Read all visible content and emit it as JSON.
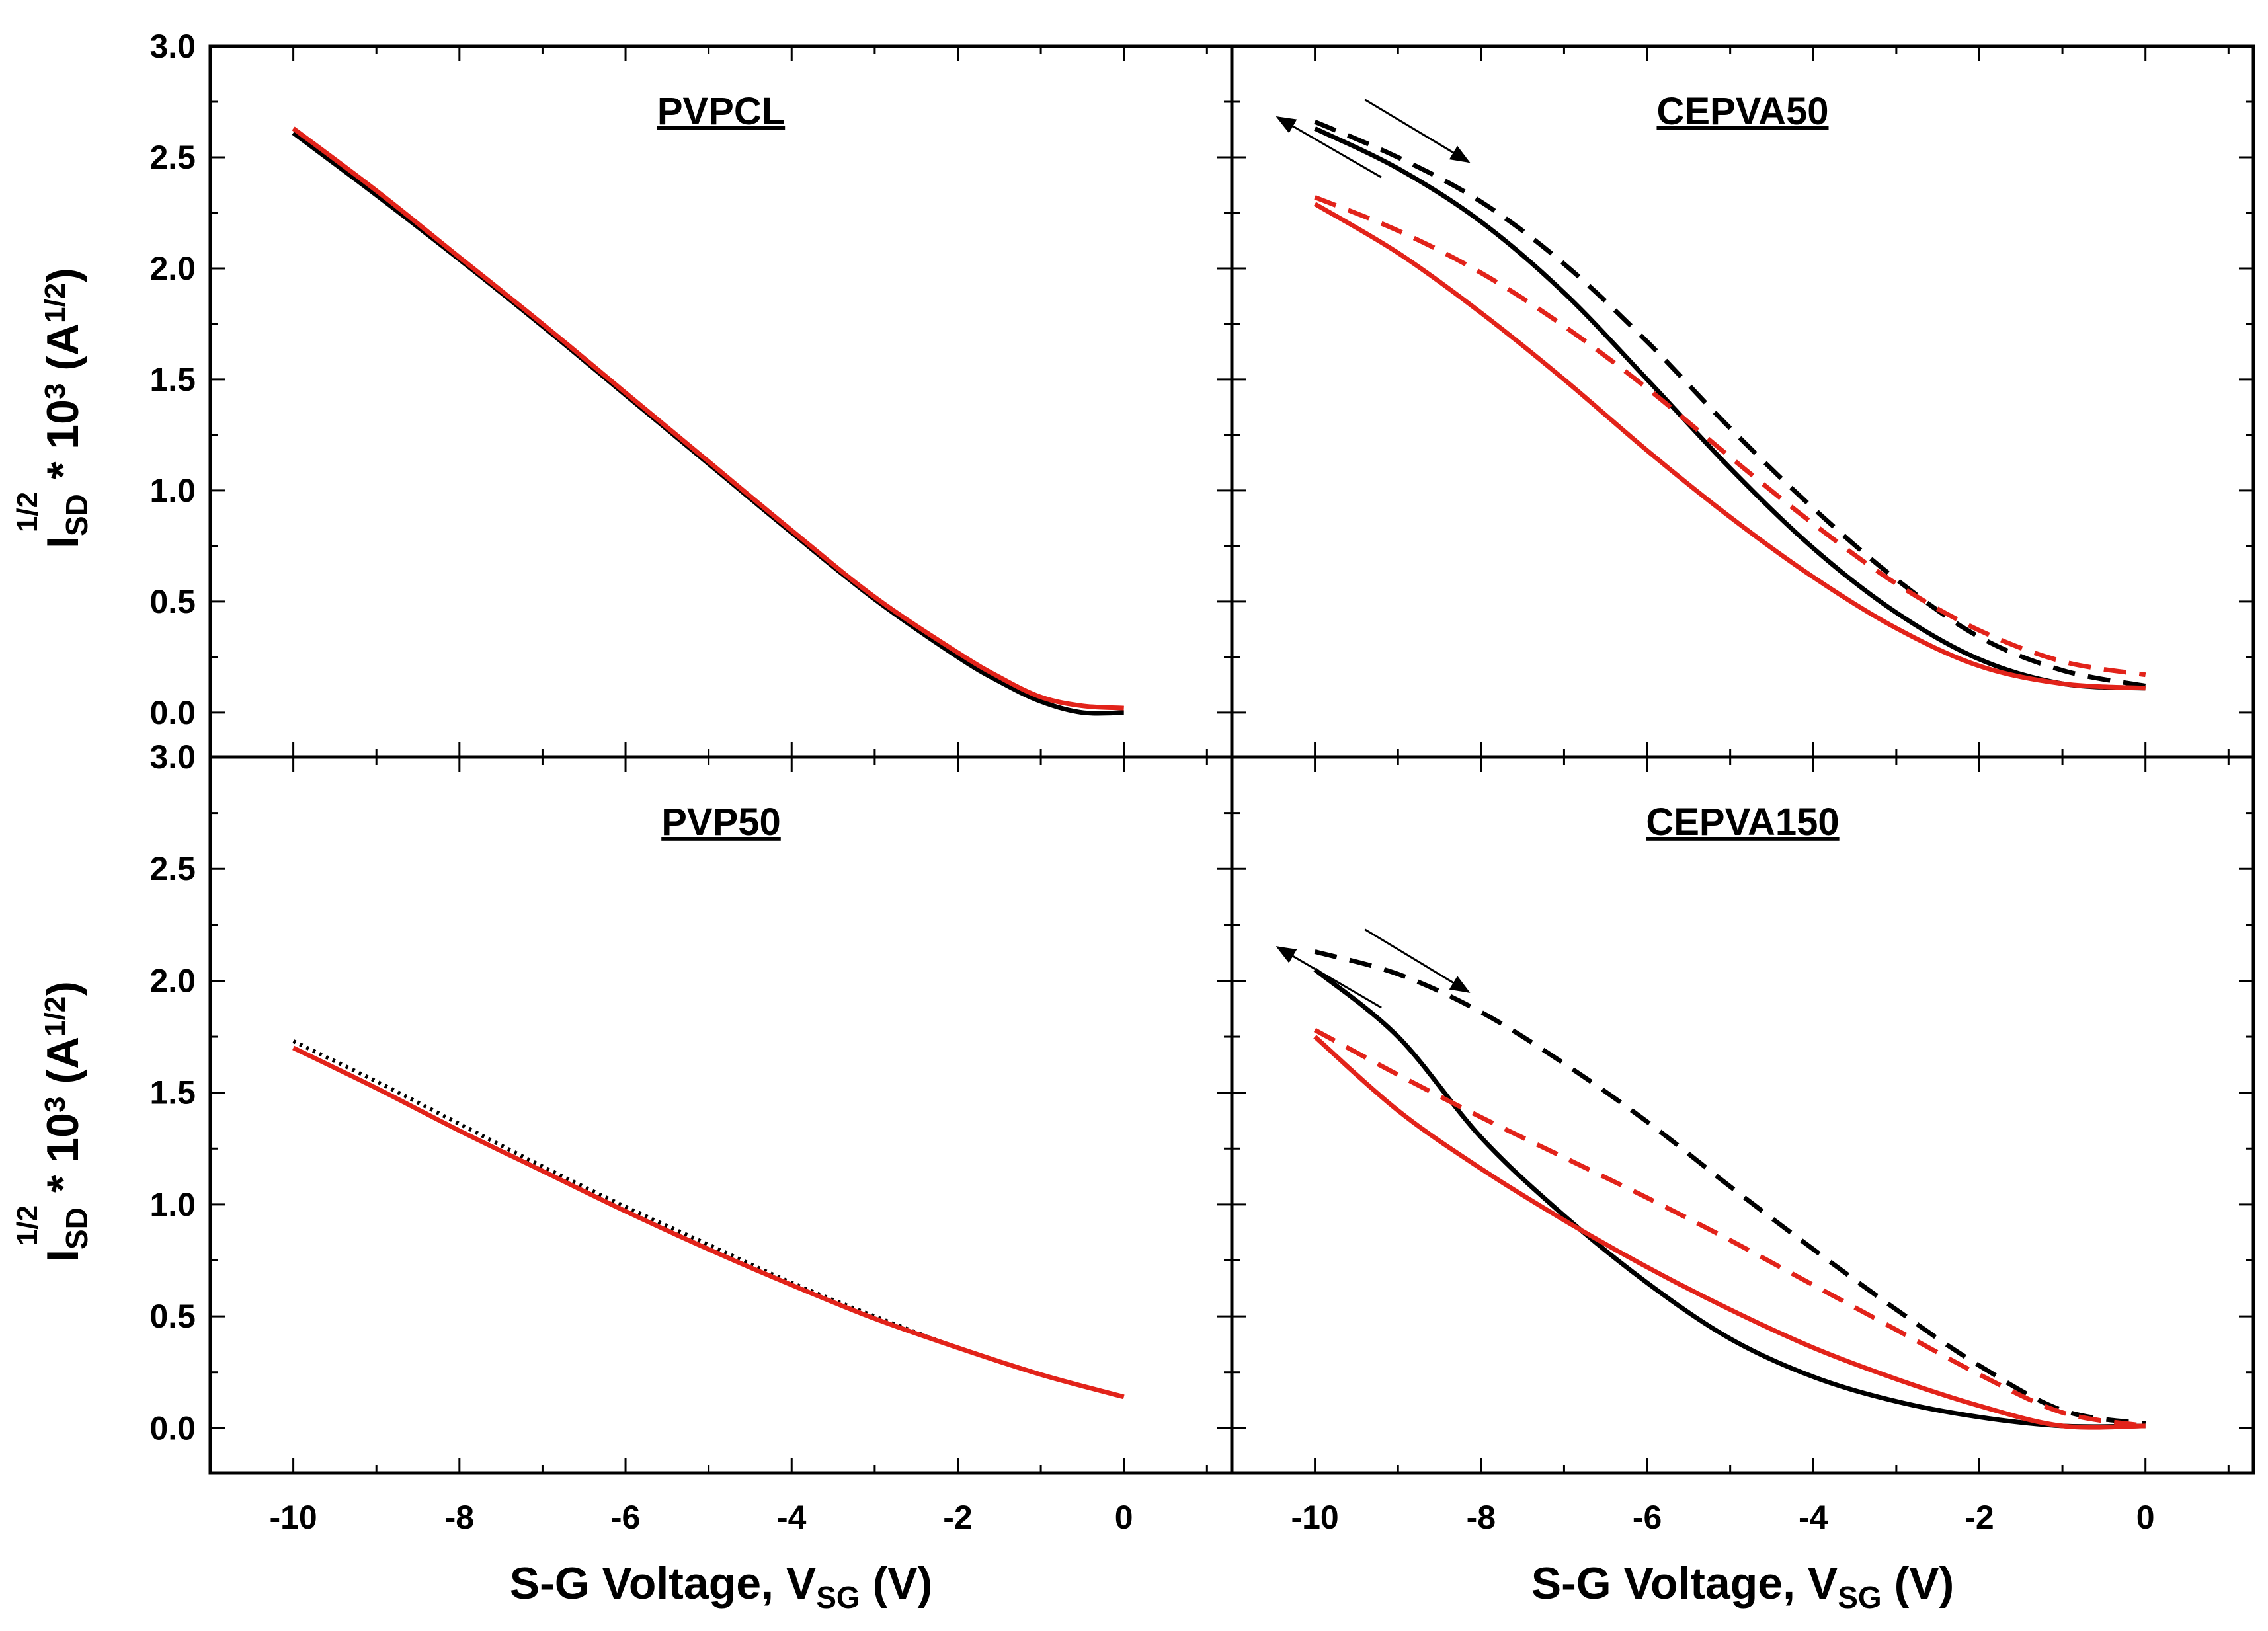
{
  "chart_data": {
    "type": "line",
    "layout": "2x2 grid, shared axes",
    "xlabel": {
      "main": "S-G Voltage, V",
      "sub": "SG",
      "tail": " (V)"
    },
    "ylabel": {
      "main": "I",
      "sub": "SD",
      "sup": "1/2",
      "mid": " * 10",
      "sup2": "3",
      "unit_open": " (A",
      "unit_sup": "1/2",
      "unit_close": ")"
    },
    "xlim": [
      -11,
      1.3
    ],
    "ylim": [
      -0.2,
      3.0
    ],
    "x_ticks": [
      -10,
      -8,
      -6,
      -4,
      -2,
      0
    ],
    "x_tick_labels": [
      "-10",
      "-8",
      "-6",
      "-4",
      "-2",
      "0"
    ],
    "y_ticks": [
      0.0,
      0.5,
      1.0,
      1.5,
      2.0,
      2.5,
      3.0
    ],
    "y_tick_labels": [
      "0.0",
      "0.5",
      "1.0",
      "1.5",
      "2.0",
      "2.5",
      "3.0"
    ],
    "colors": {
      "black": "#000000",
      "red": "#e2231a"
    },
    "panels": [
      {
        "id": "PVPCL",
        "title": "PVPCL",
        "series": [
          {
            "name": "black forward",
            "color": "black",
            "dash": false,
            "x": [
              -10,
              -9,
              -8,
              -7,
              -6,
              -5,
              -4,
              -3,
              -2,
              -1.5,
              -1,
              -0.5,
              0
            ],
            "y": [
              2.61,
              2.33,
              2.04,
              1.74,
              1.43,
              1.12,
              0.81,
              0.51,
              0.25,
              0.14,
              0.05,
              0.0,
              0.0
            ]
          },
          {
            "name": "red forward",
            "color": "red",
            "dash": false,
            "x": [
              -10,
              -9,
              -8,
              -7,
              -6,
              -5,
              -4,
              -3,
              -2,
              -1.5,
              -1,
              -0.5,
              0
            ],
            "y": [
              2.63,
              2.35,
              2.05,
              1.75,
              1.44,
              1.13,
              0.82,
              0.52,
              0.27,
              0.16,
              0.07,
              0.03,
              0.02
            ]
          }
        ]
      },
      {
        "id": "CEPVA50",
        "title": "CEPVA50",
        "arrows": true,
        "series": [
          {
            "name": "black solid",
            "color": "black",
            "dash": false,
            "x": [
              -10,
              -9,
              -8,
              -7,
              -6,
              -5,
              -4,
              -3,
              -2,
              -1,
              0
            ],
            "y": [
              2.63,
              2.45,
              2.21,
              1.89,
              1.5,
              1.1,
              0.74,
              0.45,
              0.24,
              0.13,
              0.11
            ]
          },
          {
            "name": "black dashed",
            "color": "black",
            "dash": true,
            "x": [
              -10,
              -9,
              -8,
              -7,
              -6,
              -5,
              -4,
              -3,
              -2,
              -1,
              0
            ],
            "y": [
              2.66,
              2.5,
              2.3,
              2.02,
              1.67,
              1.28,
              0.92,
              0.6,
              0.34,
              0.19,
              0.12
            ]
          },
          {
            "name": "red solid",
            "color": "red",
            "dash": false,
            "x": [
              -10,
              -9,
              -8,
              -7,
              -6,
              -5,
              -4,
              -3,
              -2,
              -1,
              0
            ],
            "y": [
              2.29,
              2.07,
              1.8,
              1.5,
              1.18,
              0.88,
              0.61,
              0.38,
              0.21,
              0.13,
              0.11
            ]
          },
          {
            "name": "red dashed",
            "color": "red",
            "dash": true,
            "x": [
              -10,
              -9,
              -8,
              -7,
              -6,
              -5,
              -4,
              -3,
              -2,
              -1,
              0
            ],
            "y": [
              2.32,
              2.17,
              1.98,
              1.74,
              1.46,
              1.15,
              0.85,
              0.58,
              0.37,
              0.23,
              0.17
            ]
          }
        ]
      },
      {
        "id": "PVP50",
        "title": "PVP50",
        "series": [
          {
            "name": "black dotted",
            "color": "black",
            "dash": "dot",
            "x": [
              -10,
              -9,
              -8,
              -7,
              -6,
              -5,
              -4,
              -3,
              -2,
              -1,
              0
            ],
            "y": [
              1.73,
              1.55,
              1.36,
              1.17,
              0.99,
              0.82,
              0.65,
              0.5,
              0.36,
              0.24,
              0.14
            ]
          },
          {
            "name": "red solid",
            "color": "red",
            "dash": false,
            "x": [
              -10,
              -9,
              -8,
              -7,
              -6,
              -5,
              -4,
              -3,
              -2,
              -1,
              0
            ],
            "y": [
              1.7,
              1.52,
              1.33,
              1.15,
              0.97,
              0.8,
              0.64,
              0.49,
              0.36,
              0.24,
              0.14
            ]
          }
        ]
      },
      {
        "id": "CEPVA150",
        "title": "CEPVA150",
        "arrows": true,
        "series": [
          {
            "name": "black solid",
            "color": "black",
            "dash": false,
            "x": [
              -10,
              -9,
              -8,
              -7,
              -6,
              -5,
              -4,
              -3,
              -2,
              -1,
              0
            ],
            "y": [
              2.05,
              1.75,
              1.3,
              0.95,
              0.65,
              0.4,
              0.23,
              0.12,
              0.05,
              0.01,
              0.01
            ]
          },
          {
            "name": "black dashed",
            "color": "black",
            "dash": true,
            "x": [
              -10,
              -9,
              -8,
              -7,
              -6,
              -5,
              -4,
              -3,
              -2,
              -1,
              0
            ],
            "y": [
              2.13,
              2.03,
              1.86,
              1.63,
              1.37,
              1.08,
              0.8,
              0.53,
              0.28,
              0.08,
              0.02
            ]
          },
          {
            "name": "red solid",
            "color": "red",
            "dash": false,
            "x": [
              -10,
              -9,
              -8,
              -7,
              -6,
              -5,
              -4,
              -3,
              -2,
              -1,
              0
            ],
            "y": [
              1.75,
              1.42,
              1.16,
              0.93,
              0.72,
              0.53,
              0.36,
              0.22,
              0.1,
              0.01,
              0.01
            ]
          },
          {
            "name": "red dashed",
            "color": "red",
            "dash": true,
            "x": [
              -10,
              -9,
              -8,
              -7,
              -6,
              -5,
              -4,
              -3,
              -2,
              -1,
              0
            ],
            "y": [
              1.78,
              1.58,
              1.39,
              1.21,
              1.03,
              0.84,
              0.64,
              0.44,
              0.24,
              0.07,
              0.01
            ]
          }
        ]
      }
    ]
  }
}
